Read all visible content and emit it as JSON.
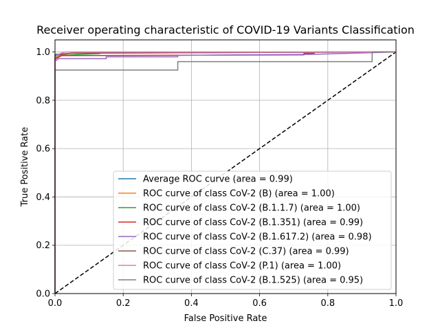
{
  "chart_data": {
    "type": "line",
    "title": "Receiver operating characteristic of COVID-19 Variants Classification",
    "xlabel": "False Positive Rate",
    "ylabel": "True Positive Rate",
    "xlim": [
      0.0,
      1.0
    ],
    "ylim": [
      0.0,
      1.05
    ],
    "x_ticks": [
      "0.0",
      "0.2",
      "0.4",
      "0.6",
      "0.8",
      "1.0"
    ],
    "y_ticks": [
      "0.0",
      "0.2",
      "0.4",
      "0.6",
      "0.8",
      "1.0"
    ],
    "grid": true,
    "legend_position": "lower-right",
    "series": [
      {
        "name": "Average ROC curve (area = 0.99)",
        "color": "#1f77b4",
        "points": [
          [
            0.0,
            0.0
          ],
          [
            0.0,
            0.99
          ],
          [
            0.05,
            0.995
          ],
          [
            1.0,
            1.0
          ]
        ]
      },
      {
        "name": "ROC curve of class CoV-2 (B) (area = 1.00)",
        "color": "#ff7f0e",
        "points": [
          [
            0.0,
            0.0
          ],
          [
            0.0,
            0.98
          ],
          [
            0.01,
            0.985
          ],
          [
            0.03,
            0.99
          ],
          [
            0.06,
            1.0
          ],
          [
            1.0,
            1.0
          ]
        ]
      },
      {
        "name": "ROC curve of class CoV-2 (B.1.1.7) (area = 1.00)",
        "color": "#2ca02c",
        "points": [
          [
            0.0,
            0.0
          ],
          [
            0.0,
            0.975
          ],
          [
            0.02,
            0.985
          ],
          [
            0.07,
            0.99
          ],
          [
            0.13,
            0.993
          ],
          [
            0.14,
            0.998
          ],
          [
            1.0,
            1.0
          ]
        ]
      },
      {
        "name": "ROC curve of class CoV-2 (B.1.351) (area = 0.99)",
        "color": "#d62728",
        "points": [
          [
            0.0,
            0.0
          ],
          [
            0.0,
            0.97
          ],
          [
            0.01,
            0.978
          ],
          [
            0.02,
            0.985
          ],
          [
            0.73,
            0.988
          ],
          [
            0.73,
            0.994
          ],
          [
            0.76,
            0.994
          ],
          [
            0.76,
            1.0
          ],
          [
            1.0,
            1.0
          ]
        ]
      },
      {
        "name": "ROC curve of class CoV-2 (B.1.617.2) (area = 0.98)",
        "color": "#9467bd",
        "points": [
          [
            0.0,
            0.0
          ],
          [
            0.0,
            0.962
          ],
          [
            0.01,
            0.972
          ],
          [
            0.15,
            0.972
          ],
          [
            0.15,
            0.98
          ],
          [
            0.36,
            0.98
          ],
          [
            0.36,
            0.986
          ],
          [
            0.55,
            0.988
          ],
          [
            0.75,
            0.99
          ],
          [
            1.0,
            1.0
          ]
        ]
      },
      {
        "name": "ROC curve of class CoV-2 (C.37) (area = 0.99)",
        "color": "#8c564b",
        "points": [
          [
            0.0,
            0.0
          ],
          [
            0.0,
            0.985
          ],
          [
            0.02,
            0.99
          ],
          [
            0.05,
            0.995
          ],
          [
            1.0,
            1.0
          ]
        ]
      },
      {
        "name": "ROC curve of class CoV-2 (P.1) (area = 1.00)",
        "color": "#e377c2",
        "points": [
          [
            0.0,
            0.0
          ],
          [
            0.0,
            0.98
          ],
          [
            0.01,
            0.99
          ],
          [
            0.02,
            0.996
          ],
          [
            0.03,
            1.0
          ],
          [
            1.0,
            1.0
          ]
        ]
      },
      {
        "name": "ROC curve of class CoV-2 (B.1.525) (area = 0.95)",
        "color": "#7f7f7f",
        "points": [
          [
            0.0,
            0.0
          ],
          [
            0.0,
            0.925
          ],
          [
            0.36,
            0.925
          ],
          [
            0.36,
            0.96
          ],
          [
            0.93,
            0.96
          ],
          [
            0.93,
            1.0
          ],
          [
            1.0,
            1.0
          ]
        ]
      }
    ],
    "reference_line": {
      "style": "dashed",
      "color": "#000000",
      "points": [
        [
          0.0,
          0.0
        ],
        [
          1.0,
          1.0
        ]
      ]
    }
  }
}
